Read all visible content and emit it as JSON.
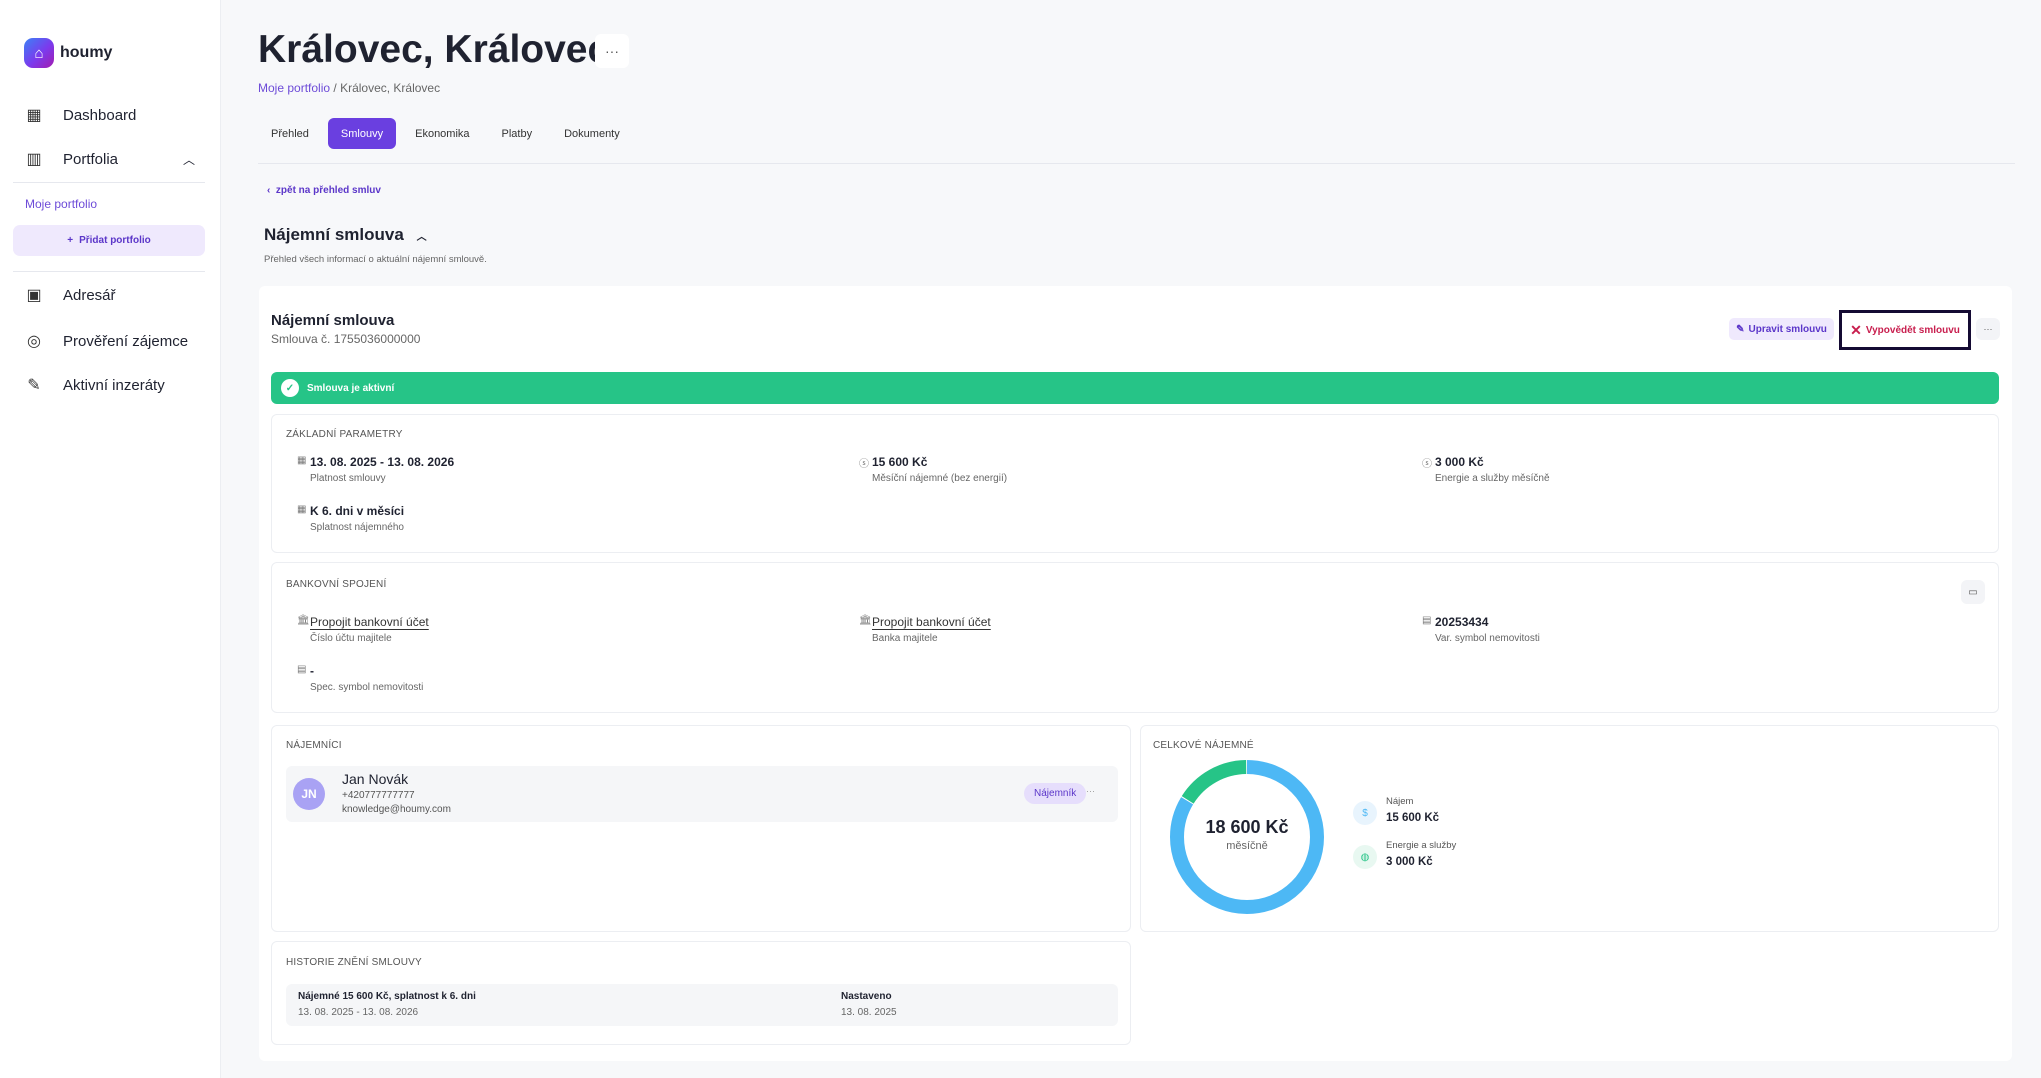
{
  "brand": {
    "name": "houmy"
  },
  "sidebar": {
    "items": [
      {
        "label": "Dashboard",
        "icon": "grid-icon"
      },
      {
        "label": "Portfolia",
        "icon": "building-icon"
      },
      {
        "label": "Adresář",
        "icon": "contact-book-icon"
      },
      {
        "label": "Prověření zájemce",
        "icon": "user-search-icon"
      },
      {
        "label": "Aktivní inzeráty",
        "icon": "ruler-icon"
      }
    ],
    "sub_item": "Moje portfolio",
    "add_portfolio": "Přidat portfolio"
  },
  "header": {
    "title": "Královec, Královec",
    "breadcrumb": [
      "Moje portfolio",
      "Královec, Královec"
    ],
    "tabs": [
      "Přehled",
      "Smlouvy",
      "Ekonomika",
      "Platby",
      "Dokumenty"
    ],
    "active_tab": "Smlouvy"
  },
  "back_link": "zpět na přehled smluv",
  "section": {
    "title": "Nájemní smlouva",
    "description": "Přehled všech informací o aktuální nájemní smlouvě."
  },
  "contract": {
    "title": "Nájemní smlouva",
    "number": "Smlouva č. 1755036000000",
    "edit_label": "Upravit smlouvu",
    "terminate_label": "Vypovědět smlouvu",
    "status": "Smlouva je aktivní",
    "status_color": "#26c487"
  },
  "basic": {
    "heading": "ZÁKLADNÍ PARAMETRY",
    "items": [
      {
        "value": "13. 08. 2025 - 13. 08. 2026",
        "label": "Platnost smlouvy"
      },
      {
        "value": "15 600 Kč",
        "label": "Měsíční nájemné (bez energií)"
      },
      {
        "value": "3 000 Kč",
        "label": "Energie a služby měsíčně"
      },
      {
        "value": "K 6. dni v měsíci",
        "label": "Splatnost nájemného"
      }
    ]
  },
  "bank": {
    "heading": "BANKOVNÍ SPOJENÍ",
    "items": [
      {
        "value": "Propojit bankovní účet",
        "label": "Číslo účtu majitele"
      },
      {
        "value": "Propojit bankovní účet",
        "label": "Banka majitele"
      },
      {
        "value": "20253434",
        "label": "Var. symbol nemovitosti"
      },
      {
        "value": "-",
        "label": "Spec. symbol nemovitosti"
      }
    ]
  },
  "tenants": {
    "heading": "NÁJEMNÍCI",
    "list": [
      {
        "initials": "JN",
        "name": "Jan Novák",
        "phone": "+420777777777",
        "email": "knowledge@houmy.com",
        "role": "Nájemník"
      }
    ]
  },
  "total": {
    "heading": "CELKOVÉ NÁJEMNÉ",
    "amount": "18 600 Kč",
    "period": "měsíčně",
    "parts": [
      {
        "label": "Nájem",
        "value": "15 600 Kč",
        "amount": 15600,
        "color": "#4db8f5"
      },
      {
        "label": "Energie a služby",
        "value": "3 000 Kč",
        "amount": 3000,
        "color": "#26c487"
      }
    ]
  },
  "history": {
    "heading": "HISTORIE ZNĚNÍ SMLOUVY",
    "rows": [
      {
        "title": "Nájemné 15 600 Kč, splatnost k 6. dni",
        "period": "13. 08. 2025 - 13. 08. 2026",
        "status": "Nastaveno",
        "date": "13. 08. 2025"
      }
    ]
  }
}
